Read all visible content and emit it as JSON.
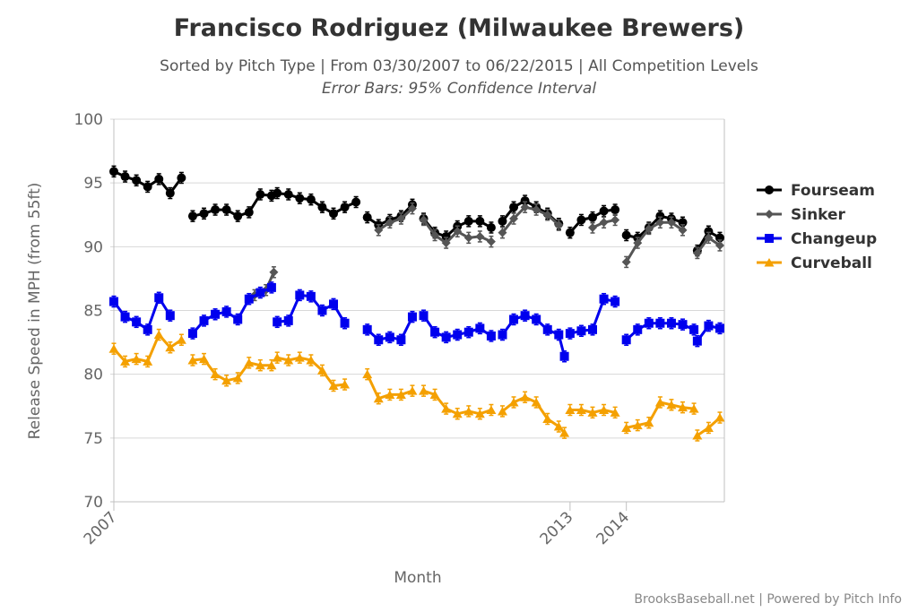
{
  "chart_data": {
    "type": "line",
    "title": "Francisco Rodriguez (Milwaukee Brewers)",
    "subtitle": "Sorted by Pitch Type | From 03/30/2007 to 06/22/2015 | All Competition Levels",
    "subtitle2": "Error Bars: 95% Confidence Interval",
    "xlabel": "Month",
    "ylabel": "Release Speed in MPH (from 55ft)",
    "ylim": [
      70,
      100
    ],
    "yticks": [
      70,
      75,
      80,
      85,
      90,
      95,
      100
    ],
    "xlim": [
      0,
      54.2
    ],
    "xticks": [
      {
        "x": 0,
        "label": "2007"
      },
      {
        "x": 40.5,
        "label": "2013"
      },
      {
        "x": 45.5,
        "label": "2014"
      }
    ],
    "grid": true,
    "legend_position": "right",
    "credit": "BrooksBaseball.net | Powered by Pitch Info",
    "series": [
      {
        "name": "Fourseam",
        "color": "#000000",
        "marker": "circle",
        "segments": [
          {
            "x": [
              0,
              1,
              2,
              3,
              4,
              5,
              6
            ],
            "y": [
              95.9,
              95.5,
              95.2,
              94.7,
              95.3,
              94.2,
              95.4
            ]
          },
          {
            "x": [
              7,
              8,
              9,
              10,
              11,
              12,
              13,
              14
            ],
            "y": [
              92.4,
              92.6,
              92.9,
              92.9,
              92.4,
              92.7,
              94.1,
              94.0
            ]
          },
          {
            "x": [
              14.5,
              15.5,
              16.5,
              17.5,
              18.5,
              19.5,
              20.5,
              21.5
            ],
            "y": [
              94.2,
              94.1,
              93.8,
              93.7,
              93.1,
              92.6,
              93.1,
              93.5
            ]
          },
          {
            "x": [
              22.5,
              23.5,
              24.5,
              25.5,
              26.5
            ],
            "y": [
              92.3,
              91.7,
              92.1,
              92.4,
              93.3
            ]
          },
          {
            "x": [
              27.5,
              28.5,
              29.5,
              30.5,
              31.5,
              32.5,
              33.5
            ],
            "y": [
              92.2,
              91.1,
              90.8,
              91.6,
              92.0,
              92.0,
              91.5
            ]
          },
          {
            "x": [
              34.5,
              35.5,
              36.5,
              37.5,
              38.5,
              39.5
            ],
            "y": [
              92.0,
              93.1,
              93.6,
              93.1,
              92.6,
              91.8
            ]
          },
          {
            "x": [
              40.5,
              41.5,
              42.5,
              43.5,
              44.5
            ],
            "y": [
              91.1,
              92.1,
              92.3,
              92.8,
              92.9
            ]
          },
          {
            "x": [
              45.5,
              46.5,
              47.5,
              48.5,
              49.5,
              50.5
            ],
            "y": [
              90.9,
              90.7,
              91.5,
              92.4,
              92.2,
              91.9
            ]
          },
          {
            "x": [
              51.8,
              52.8,
              53.8
            ],
            "y": [
              89.7,
              91.2,
              90.7
            ]
          }
        ]
      },
      {
        "name": "Sinker",
        "color": "#555555",
        "marker": "diamond",
        "segments": [
          {
            "x": [
              12.5,
              13.5,
              14.2
            ],
            "y": [
              86.2,
              86.6,
              88.0
            ]
          },
          {
            "x": [
              23.5,
              24.5,
              25.5,
              26.5
            ],
            "y": [
              91.3,
              91.9,
              92.2,
              93.0
            ]
          },
          {
            "x": [
              27.5,
              28.5,
              29.5,
              30.5,
              31.5,
              32.5,
              33.5
            ],
            "y": [
              92.1,
              90.9,
              90.3,
              91.2,
              90.7,
              90.8,
              90.4
            ]
          },
          {
            "x": [
              34.5,
              35.5,
              36.5,
              37.5,
              38.5,
              39.5
            ],
            "y": [
              91.1,
              92.2,
              93.1,
              92.9,
              92.5,
              91.7
            ]
          },
          {
            "x": [
              42.5,
              43.5,
              44.5
            ],
            "y": [
              91.5,
              91.9,
              92.1
            ]
          },
          {
            "x": [
              45.5,
              46.5,
              47.5,
              48.5,
              49.5,
              50.5
            ],
            "y": [
              88.8,
              90.3,
              91.4,
              91.9,
              91.9,
              91.3
            ]
          },
          {
            "x": [
              51.8,
              52.8,
              53.8
            ],
            "y": [
              89.5,
              90.7,
              90.1
            ]
          }
        ]
      },
      {
        "name": "Changeup",
        "color": "#0000ee",
        "marker": "square",
        "segments": [
          {
            "x": [
              0,
              1,
              2,
              3,
              4,
              5
            ],
            "y": [
              85.7,
              84.5,
              84.1,
              83.5,
              86.0,
              84.6
            ]
          },
          {
            "x": [
              7,
              8,
              9,
              10,
              11,
              12,
              13,
              14
            ],
            "y": [
              83.2,
              84.2,
              84.7,
              84.9,
              84.3,
              85.9,
              86.4,
              86.8
            ]
          },
          {
            "x": [
              14.5,
              15.5,
              16.5,
              17.5,
              18.5,
              19.5,
              20.5
            ],
            "y": [
              84.1,
              84.2,
              86.2,
              86.1,
              85.0,
              85.5,
              84.0
            ]
          },
          {
            "x": [
              22.5,
              23.5,
              24.5,
              25.5,
              26.5
            ],
            "y": [
              83.5,
              82.7,
              82.9,
              82.7,
              84.5
            ]
          },
          {
            "x": [
              27.5,
              28.5,
              29.5,
              30.5,
              31.5,
              32.5,
              33.5
            ],
            "y": [
              84.6,
              83.3,
              82.9,
              83.1,
              83.3,
              83.6,
              83.0
            ]
          },
          {
            "x": [
              34.5,
              35.5,
              36.5,
              37.5,
              38.5,
              39.5,
              40.0
            ],
            "y": [
              83.1,
              84.3,
              84.6,
              84.3,
              83.5,
              83.1,
              81.4
            ]
          },
          {
            "x": [
              40.5,
              41.5,
              42.5,
              43.5,
              44.5
            ],
            "y": [
              83.2,
              83.4,
              83.5,
              85.9,
              85.7
            ]
          },
          {
            "x": [
              45.5,
              46.5,
              47.5,
              48.5,
              49.5,
              50.5,
              51.5
            ],
            "y": [
              82.7,
              83.5,
              84.0,
              84.0,
              84.0,
              83.9,
              83.5
            ]
          },
          {
            "x": [
              51.8,
              52.8,
              53.8
            ],
            "y": [
              82.6,
              83.8,
              83.6
            ]
          }
        ]
      },
      {
        "name": "Curveball",
        "color": "#f4a000",
        "marker": "triangle",
        "segments": [
          {
            "x": [
              0,
              1,
              2,
              3,
              4,
              5,
              6
            ],
            "y": [
              82.0,
              81.0,
              81.2,
              81.0,
              83.1,
              82.1,
              82.7
            ]
          },
          {
            "x": [
              7,
              8,
              9,
              10,
              11,
              12,
              13,
              14
            ],
            "y": [
              81.1,
              81.2,
              80.0,
              79.5,
              79.7,
              80.9,
              80.7,
              80.7
            ]
          },
          {
            "x": [
              14.5,
              15.5,
              16.5,
              17.5,
              18.5,
              19.5,
              20.5
            ],
            "y": [
              81.3,
              81.1,
              81.3,
              81.1,
              80.3,
              79.1,
              79.2
            ]
          },
          {
            "x": [
              22.5,
              23.5,
              24.5,
              25.5,
              26.5
            ],
            "y": [
              80.0,
              78.1,
              78.4,
              78.4,
              78.7
            ]
          },
          {
            "x": [
              27.5,
              28.5,
              29.5,
              30.5,
              31.5,
              32.5,
              33.5
            ],
            "y": [
              78.7,
              78.4,
              77.3,
              76.9,
              77.1,
              76.9,
              77.2
            ]
          },
          {
            "x": [
              34.5,
              35.5,
              36.5,
              37.5,
              38.5,
              39.5,
              40.0
            ],
            "y": [
              77.1,
              77.8,
              78.2,
              77.8,
              76.5,
              75.9,
              75.4
            ]
          },
          {
            "x": [
              40.5,
              41.5,
              42.5,
              43.5,
              44.5
            ],
            "y": [
              77.2,
              77.2,
              77.0,
              77.2,
              77.0
            ]
          },
          {
            "x": [
              45.5,
              46.5,
              47.5,
              48.5,
              49.5,
              50.5,
              51.5
            ],
            "y": [
              75.8,
              76.0,
              76.2,
              77.8,
              77.6,
              77.4,
              77.3
            ]
          },
          {
            "x": [
              51.8,
              52.8,
              53.8
            ],
            "y": [
              75.2,
              75.8,
              76.6
            ]
          }
        ]
      }
    ]
  }
}
